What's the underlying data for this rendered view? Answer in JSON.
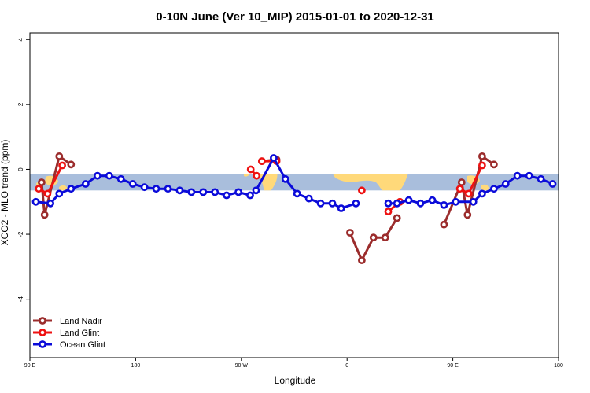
{
  "chart_data": {
    "type": "line",
    "title": "0-10N June (Ver 10_MIP)   2015-01-01 to 2020-12-31",
    "xlabel": "Longitude",
    "ylabel": "XCO2 - MLO trend (ppm)",
    "xlim": [
      0,
      450
    ],
    "ylim": [
      -5.8,
      4.2
    ],
    "yticks": [
      -4,
      -2,
      0,
      2,
      4
    ],
    "xticks": [
      {
        "pos": 0,
        "label": "90 E"
      },
      {
        "pos": 90,
        "label": "180"
      },
      {
        "pos": 180,
        "label": "90 W"
      },
      {
        "pos": 270,
        "label": "0"
      },
      {
        "pos": 360,
        "label": "90 E"
      },
      {
        "pos": 450,
        "label": "180"
      }
    ],
    "band": {
      "ymin": -0.65,
      "ymax": -0.15,
      "color": "#a9bedc",
      "land_color": "#ffd97a"
    },
    "series": [
      {
        "name": "Land Nadir",
        "color": "#9b2c2c",
        "segments": [
          [
            [
              10,
              -0.4
            ],
            [
              12.5,
              -1.4
            ],
            [
              25,
              0.4
            ],
            [
              35,
              0.15
            ]
          ],
          [
            [
              197.5,
              0.25
            ],
            [
              210,
              0.3
            ]
          ],
          [
            [
              272.5,
              -1.95
            ],
            [
              282.5,
              -2.8
            ],
            [
              292.5,
              -2.1
            ],
            [
              302.5,
              -2.1
            ],
            [
              312.5,
              -1.5
            ]
          ],
          [
            [
              352.5,
              -1.7
            ],
            [
              367.5,
              -0.4
            ],
            [
              372.5,
              -1.4
            ],
            [
              385,
              0.4
            ],
            [
              395,
              0.15
            ]
          ]
        ]
      },
      {
        "name": "Land Glint",
        "color": "#ee1111",
        "segments": [
          [
            [
              7.5,
              -0.6
            ],
            [
              15,
              -0.75
            ],
            [
              27.5,
              0.12
            ]
          ],
          [
            [
              197.5,
              0.25
            ],
            [
              210,
              0.25
            ]
          ],
          [
            [
              188,
              0.0
            ],
            [
              193,
              -0.2
            ]
          ],
          [
            [
              282.5,
              -0.65
            ]
          ],
          [
            [
              305,
              -1.3
            ],
            [
              315,
              -1.0
            ]
          ],
          [
            [
              366,
              -0.6
            ],
            [
              373.5,
              -0.75
            ],
            [
              385,
              0.12
            ]
          ]
        ]
      },
      {
        "name": "Ocean Glint",
        "color": "#0b0bd9",
        "segments": [
          [
            [
              5,
              -1.0
            ],
            [
              17.5,
              -1.05
            ],
            [
              25,
              -0.75
            ],
            [
              35,
              -0.6
            ],
            [
              47.5,
              -0.45
            ],
            [
              57.5,
              -0.2
            ],
            [
              67.5,
              -0.2
            ],
            [
              77.5,
              -0.3
            ],
            [
              87.5,
              -0.45
            ],
            [
              97.5,
              -0.55
            ],
            [
              107.5,
              -0.6
            ],
            [
              117.5,
              -0.6
            ],
            [
              127.5,
              -0.65
            ],
            [
              137.5,
              -0.7
            ],
            [
              147.5,
              -0.7
            ],
            [
              157.5,
              -0.7
            ],
            [
              167.5,
              -0.8
            ],
            [
              177.5,
              -0.7
            ],
            [
              187.5,
              -0.8
            ],
            [
              192.5,
              -0.65
            ],
            [
              207.5,
              0.35
            ],
            [
              217.5,
              -0.3
            ],
            [
              227.5,
              -0.75
            ],
            [
              237.5,
              -0.9
            ],
            [
              247.5,
              -1.05
            ],
            [
              257.5,
              -1.05
            ],
            [
              265,
              -1.2
            ],
            [
              277.5,
              -1.05
            ]
          ],
          [
            [
              305,
              -1.05
            ],
            [
              312.5,
              -1.05
            ],
            [
              322.5,
              -0.95
            ],
            [
              332.5,
              -1.05
            ],
            [
              342.5,
              -0.95
            ],
            [
              352.5,
              -1.1
            ],
            [
              362.5,
              -1.0
            ],
            [
              377.5,
              -1.0
            ],
            [
              385,
              -0.75
            ],
            [
              395,
              -0.6
            ],
            [
              405,
              -0.45
            ],
            [
              415,
              -0.2
            ],
            [
              425,
              -0.2
            ],
            [
              435,
              -0.3
            ],
            [
              445,
              -0.45
            ]
          ]
        ]
      }
    ],
    "legend": {
      "position": "bottom-left",
      "entries": [
        "Land Nadir",
        "Land Glint",
        "Ocean Glint"
      ]
    }
  }
}
